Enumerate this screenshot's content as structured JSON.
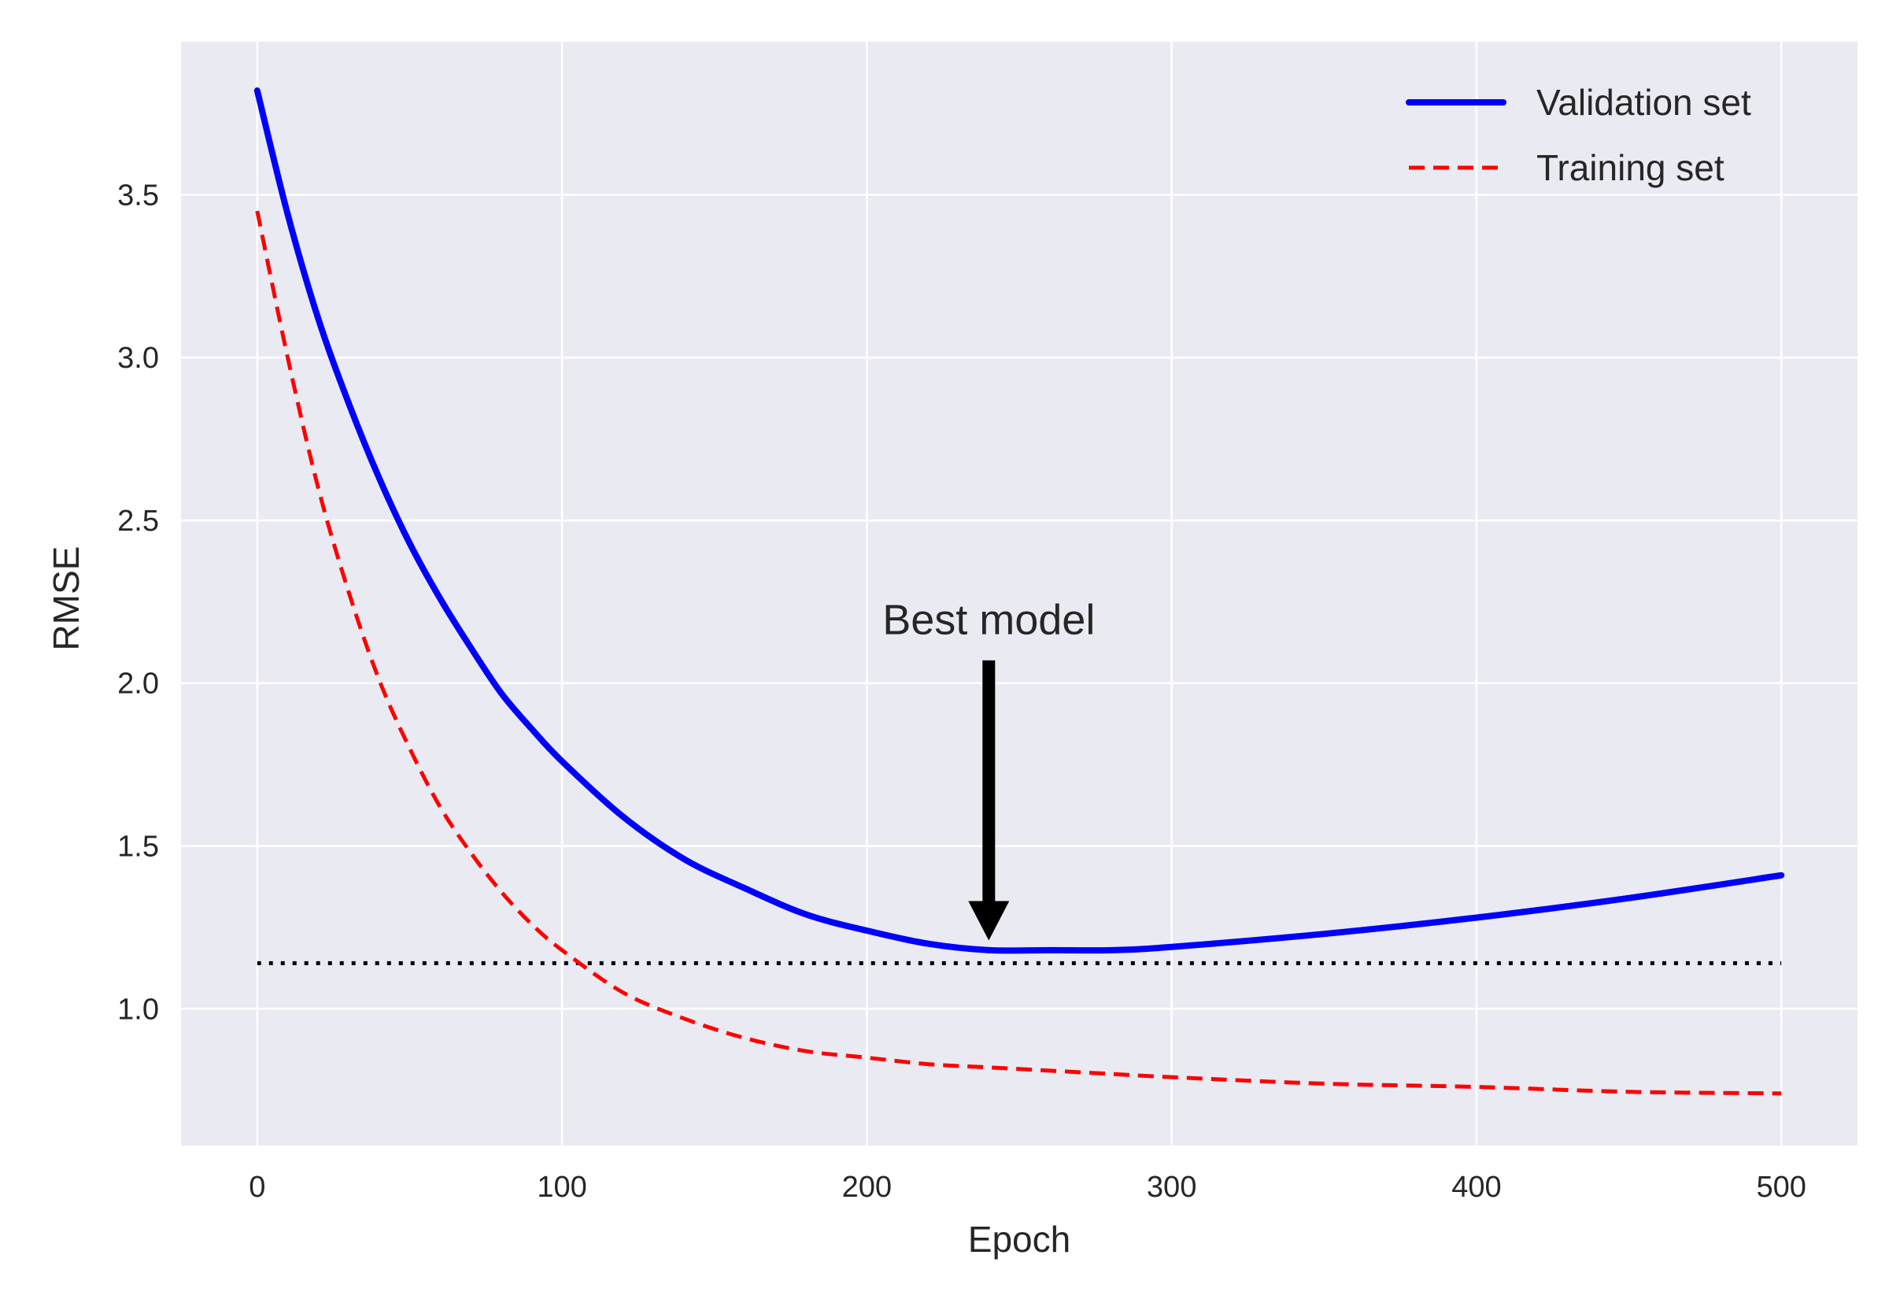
{
  "chart_data": {
    "type": "line",
    "title": "",
    "xlabel": "Epoch",
    "ylabel": "RMSE",
    "xlim": [
      -25,
      525
    ],
    "ylim": [
      0.58,
      3.97
    ],
    "x_ticks": [
      0,
      100,
      200,
      300,
      400,
      500
    ],
    "x_tick_labels": [
      "0",
      "100",
      "200",
      "300",
      "400",
      "500"
    ],
    "y_ticks": [
      1.0,
      1.5,
      2.0,
      2.5,
      3.0,
      3.5
    ],
    "y_tick_labels": [
      "1.0",
      "1.5",
      "2.0",
      "2.5",
      "3.0",
      "3.5"
    ],
    "grid": true,
    "background_color": "#eaeaf2",
    "grid_color": "#ffffff",
    "legend_position": "top-right",
    "series": [
      {
        "name": "Validation set",
        "color": "#0000ff",
        "line_style": "solid",
        "x": [
          0,
          10,
          20,
          30,
          40,
          50,
          60,
          70,
          80,
          90,
          100,
          120,
          140,
          160,
          180,
          200,
          220,
          240,
          260,
          280,
          300,
          350,
          400,
          450,
          500
        ],
        "y": [
          3.82,
          3.44,
          3.12,
          2.86,
          2.63,
          2.43,
          2.26,
          2.11,
          1.97,
          1.86,
          1.76,
          1.59,
          1.46,
          1.37,
          1.29,
          1.24,
          1.2,
          1.18,
          1.18,
          1.18,
          1.19,
          1.23,
          1.28,
          1.34,
          1.41
        ]
      },
      {
        "name": "Training set",
        "color": "#ff0000",
        "line_style": "dashed",
        "x": [
          0,
          10,
          20,
          30,
          40,
          50,
          60,
          70,
          80,
          90,
          100,
          120,
          140,
          160,
          180,
          200,
          220,
          240,
          260,
          280,
          300,
          350,
          400,
          450,
          500
        ],
        "y": [
          3.45,
          3.0,
          2.6,
          2.28,
          2.01,
          1.8,
          1.62,
          1.48,
          1.36,
          1.26,
          1.18,
          1.05,
          0.97,
          0.91,
          0.87,
          0.85,
          0.83,
          0.82,
          0.81,
          0.8,
          0.79,
          0.77,
          0.76,
          0.745,
          0.74
        ]
      },
      {
        "name": "",
        "color": "#000000",
        "line_style": "dotted",
        "x": [
          0,
          500
        ],
        "y": [
          1.14,
          1.14
        ]
      }
    ],
    "annotations": [
      {
        "text": "Best model",
        "text_x": 240,
        "text_y": 2.15,
        "arrow_from_y": 2.07,
        "arrow_to_x": 240,
        "arrow_to_y": 1.21,
        "color": "#000000"
      }
    ]
  }
}
